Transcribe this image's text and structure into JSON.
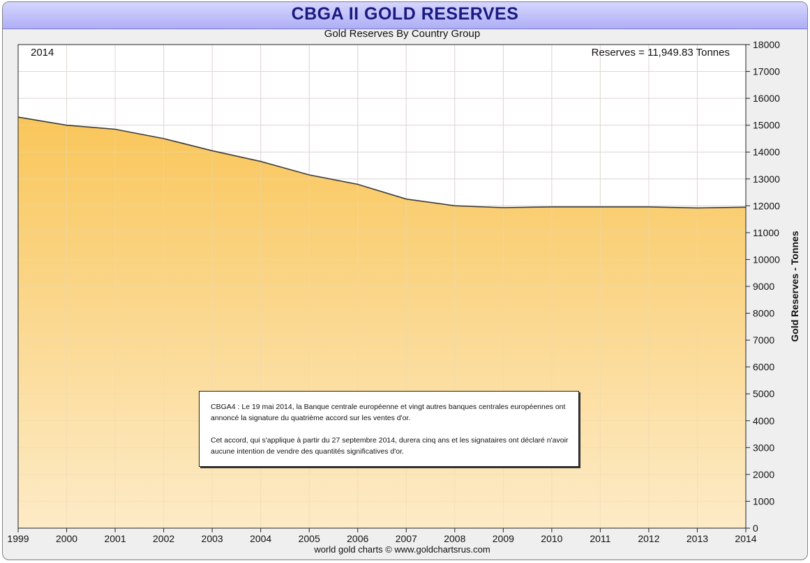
{
  "header": {
    "title": "CBGA II GOLD RESERVES"
  },
  "subtitle": "Gold Reserves By Country Group",
  "footer": "world gold charts © www.goldchartsrus.com",
  "corner_label": "2014",
  "reserves_label": "Reserves = 11,949.83 Tonnes",
  "note": {
    "paragraph1": "CBGA4 : Le 19 mai 2014, la Banque centrale européenne et vingt autres banques centrales européennes ont annoncé la signature du quatrième accord sur les ventes d'or.",
    "paragraph2": "Cet accord, qui s'applique à partir du 27 septembre 2014, durera cinq ans et les signataires ont déclaré n'avoir aucune intention de vendre des quantités significatives d'or."
  },
  "colors": {
    "area_top": "#f9c65a",
    "area_bottom": "#fdebc7",
    "line": "#3a3a3a",
    "grid": "#d8d8ee",
    "title_text": "#1a1a80"
  },
  "chart_data": {
    "type": "area",
    "x": [
      1999,
      2000,
      2001,
      2002,
      2003,
      2004,
      2005,
      2006,
      2007,
      2008,
      2009,
      2010,
      2011,
      2012,
      2013,
      2014
    ],
    "values": [
      15300,
      15000,
      14850,
      14500,
      14050,
      13650,
      13150,
      12800,
      12250,
      12000,
      11930,
      11960,
      11960,
      11960,
      11920,
      11950
    ],
    "ylabel": "Gold Reserves - Tonnes",
    "xlim": [
      1999,
      2014
    ],
    "ylim": [
      0,
      18000
    ],
    "y_ticks": [
      0,
      1000,
      2000,
      3000,
      4000,
      5000,
      6000,
      7000,
      8000,
      9000,
      10000,
      11000,
      12000,
      13000,
      14000,
      15000,
      16000,
      17000,
      18000
    ],
    "x_ticks": [
      1999,
      2000,
      2001,
      2002,
      2003,
      2004,
      2005,
      2006,
      2007,
      2008,
      2009,
      2010,
      2011,
      2012,
      2013,
      2014
    ],
    "grid": true,
    "y_axis_side": "right"
  }
}
